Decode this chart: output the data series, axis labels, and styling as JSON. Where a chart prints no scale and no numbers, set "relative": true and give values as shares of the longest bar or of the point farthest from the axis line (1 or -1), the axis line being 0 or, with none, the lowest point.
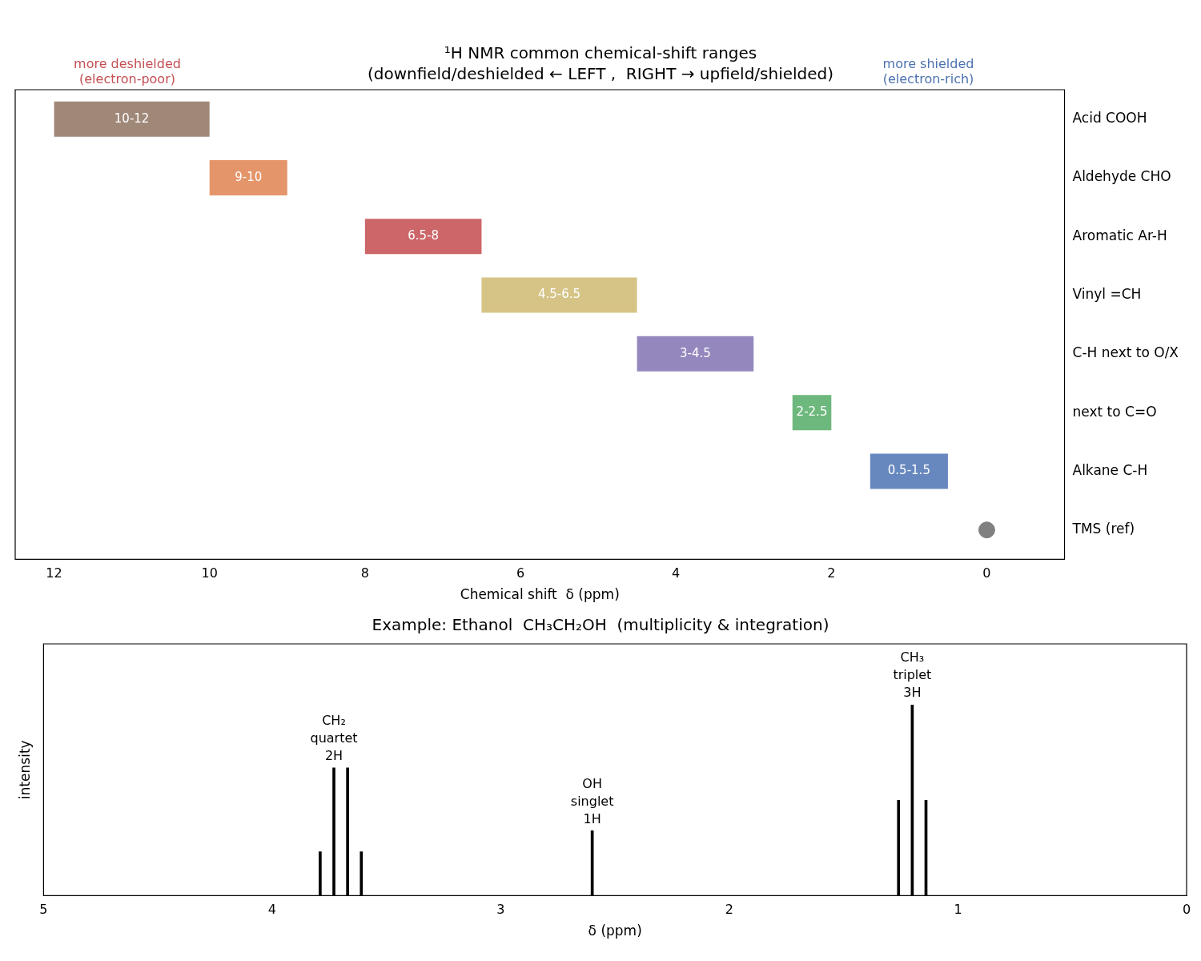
{
  "chart_data": [
    {
      "type": "bar",
      "orientation": "horizontal",
      "title": "¹H NMR common chemical-shift ranges",
      "subtitle": "(downfield/deshielded ← LEFT ,  RIGHT → upfield/shielded)",
      "xlabel": "Chemical shift  δ (ppm)",
      "categories": [
        "Acid COOH",
        "Aldehyde CHO",
        "Aromatic Ar-H",
        "Vinyl =CH",
        "C-H next to O/X",
        "next to C=O",
        "Alkane C-H",
        "TMS (ref)"
      ],
      "xlim": [
        12.5,
        -1
      ],
      "xticks": [
        12,
        10,
        8,
        6,
        4,
        2,
        0
      ],
      "annotations": [
        "more deshielded\n(electron-poor)",
        "more shielded\n(electron-rich)"
      ],
      "series": [
        {
          "type": "bar",
          "base": [
            10,
            9,
            6.5,
            4.5,
            3,
            2,
            0.5,
            null
          ],
          "values": [
            2,
            1,
            1.5,
            2,
            1.5,
            0.5,
            1,
            null
          ],
          "colors": [
            "#a08878",
            "#e5956a",
            "#cc6669",
            "#d6c486",
            "#9487bd",
            "#6db87d",
            "#6787bf",
            "#808080"
          ],
          "value_labels": [
            "10-12",
            "9-10",
            "6.5-8",
            "4.5-6.5",
            "3-4.5",
            "2-2.5",
            "0.5-1.5",
            null
          ]
        },
        {
          "type": "scatter",
          "values": [
            null,
            null,
            null,
            null,
            null,
            null,
            null,
            0
          ],
          "color": "#808080",
          "marker": "circle"
        }
      ]
    },
    {
      "type": "bar",
      "title": "Example: Ethanol  CH₃CH₂OH  (multiplicity & integration)",
      "xlabel": "δ (ppm)",
      "ylabel": "intensity",
      "relative": true,
      "x": [
        3.79,
        3.73,
        3.67,
        3.61,
        2.6,
        1.26,
        1.2,
        1.14
      ],
      "values": [
        0.23,
        0.67,
        0.67,
        0.23,
        0.34,
        0.5,
        1,
        0.5
      ],
      "color": "#000000",
      "xlim": [
        5,
        0
      ],
      "xticks": [
        5,
        4,
        3,
        2,
        1,
        0
      ],
      "annotations": [
        {
          "text": "CH₂\nquartet\n2H",
          "x": 3.73,
          "y": 0.67
        },
        {
          "text": "OH\nsinglet\n1H",
          "x": 2.6,
          "y": 0.34
        },
        {
          "text": "CH₃\ntriplet\n3H",
          "x": 1.2,
          "y": 1
        }
      ]
    }
  ]
}
